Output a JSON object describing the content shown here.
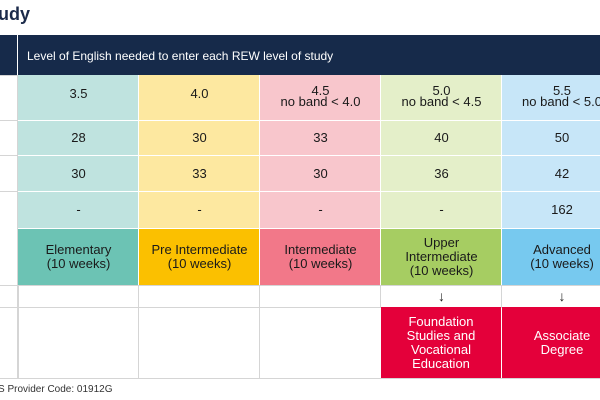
{
  "page_title": "udy",
  "header": {
    "text": "Level of English needed to enter each REW level of study"
  },
  "columns": [
    {
      "ielts": "3.5",
      "ielts_note": "",
      "row2": "28",
      "row3": "30",
      "row4": "-",
      "level": "Elementary",
      "duration": "(10 weeks)",
      "color": "#bfe3df",
      "level_color": "#6cc3b4"
    },
    {
      "ielts": "4.0",
      "ielts_note": "",
      "row2": "30",
      "row3": "33",
      "row4": "-",
      "level": "Pre Intermediate",
      "duration": "(10 weeks)",
      "color": "#fde8a0",
      "level_color": "#fbc000"
    },
    {
      "ielts": "4.5",
      "ielts_note": "no band < 4.0",
      "row2": "33",
      "row3": "30",
      "row4": "-",
      "level": "Intermediate",
      "duration": "(10 weeks)",
      "color": "#f8c6cc",
      "level_color": "#f27889"
    },
    {
      "ielts": "5.0",
      "ielts_note": "no band < 4.5",
      "row2": "40",
      "row3": "36",
      "row4": "-",
      "level": "Upper Intermediate",
      "duration": "(10 weeks)",
      "color": "#e4efc9",
      "level_color": "#a6cd62"
    },
    {
      "ielts": "5.5",
      "ielts_note": "no band < 5.0",
      "row2": "50",
      "row3": "42",
      "row4": "162",
      "level": "Advanced",
      "duration": "(10 weeks)",
      "color": "#c7e6f8",
      "level_color": "#77c9ef"
    }
  ],
  "arrows": [
    "",
    "",
    "",
    "↓",
    "↓"
  ],
  "pathways": [
    "",
    "",
    "",
    "Foundation Studies and Vocational Education",
    "Associate Degree"
  ],
  "footer": "S Provider Code: 01912G"
}
